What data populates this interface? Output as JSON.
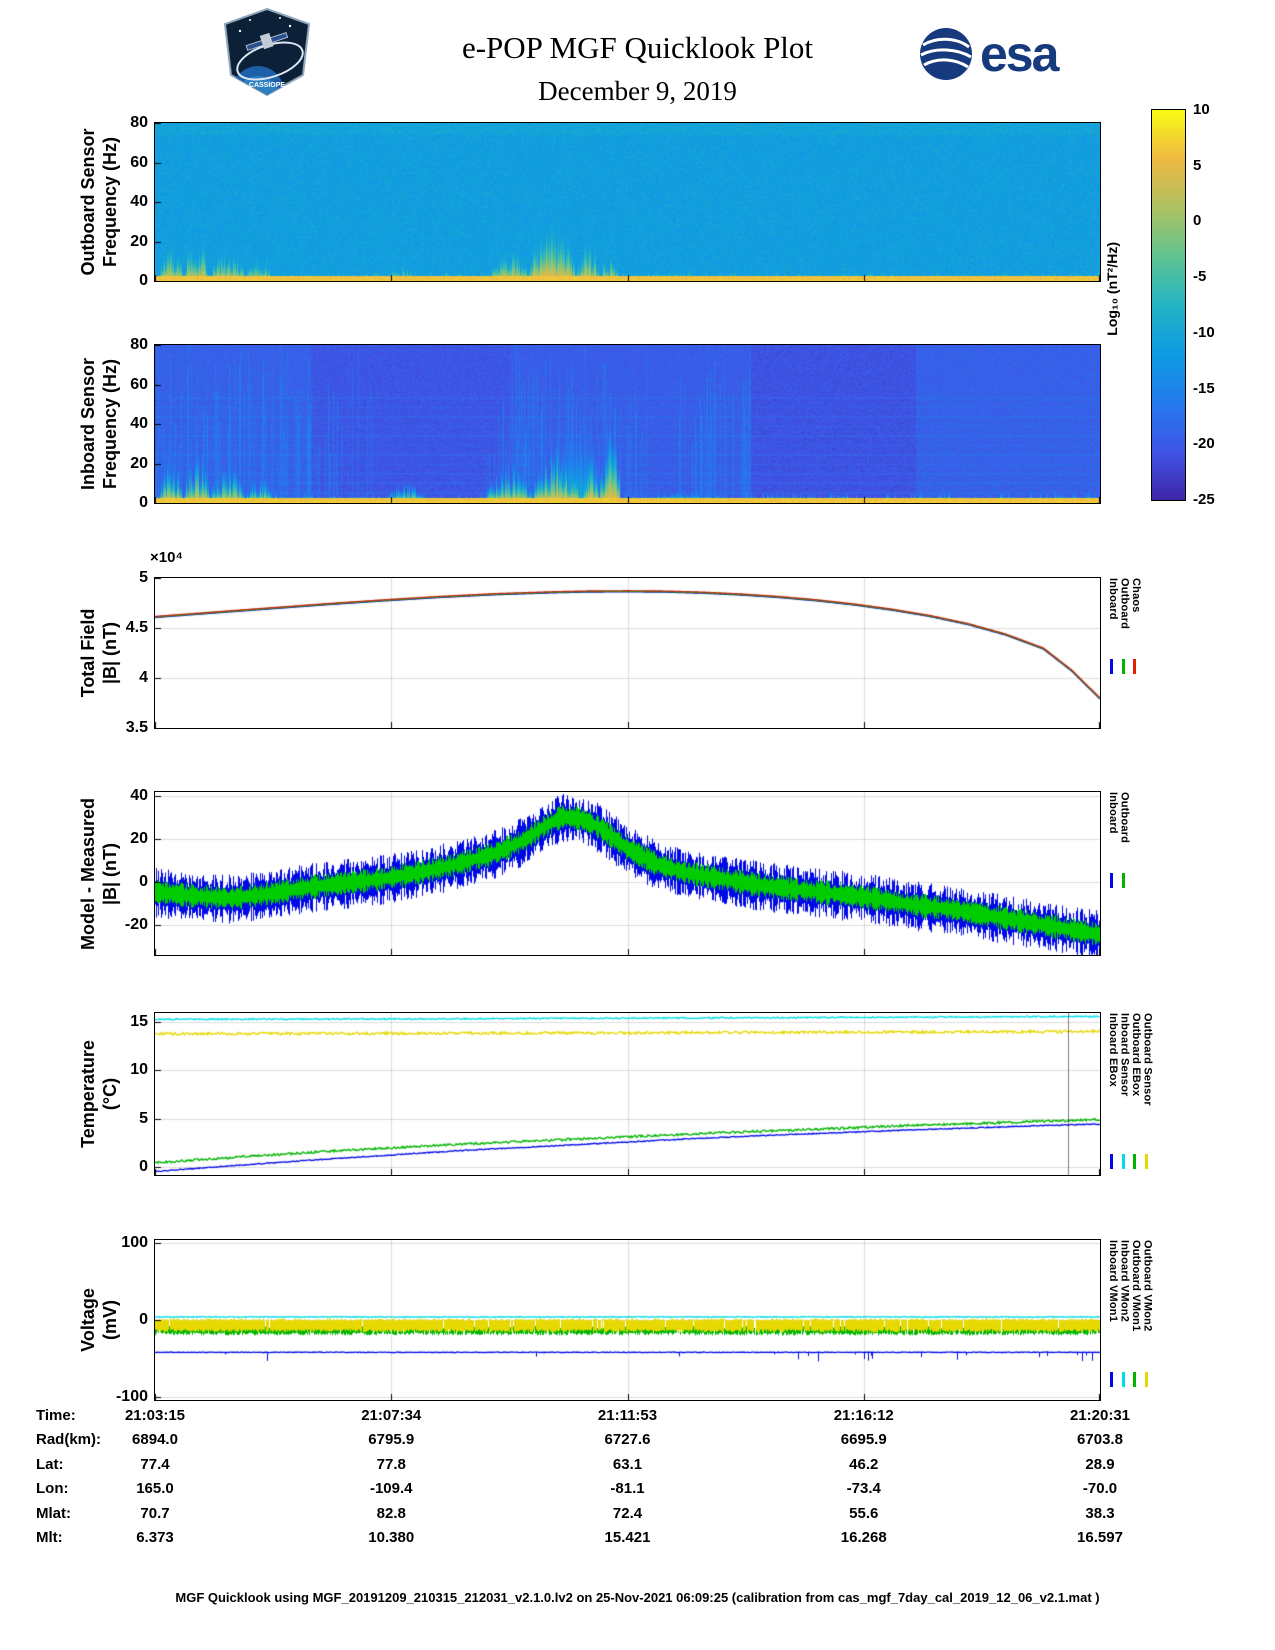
{
  "header": {
    "title": "e-POP MGF Quicklook Plot",
    "date": "December 9, 2019",
    "esa_wordmark": "esa",
    "mission_patch_text": "CASSIOPE"
  },
  "colorbar": {
    "label": "Log₁₀ (nT²/Hz)",
    "max": 10,
    "min": -25,
    "ticks": [
      10,
      5,
      0,
      -5,
      -10,
      -15,
      -20,
      -25
    ],
    "colormap": "parula"
  },
  "time_axis": {
    "tick_labels": [
      "21:03:15",
      "21:07:34",
      "21:11:53",
      "21:16:12",
      "21:20:31"
    ]
  },
  "ephemeris": {
    "rows": [
      {
        "label": "Time:",
        "values": [
          "21:03:15",
          "21:07:34",
          "21:11:53",
          "21:16:12",
          "21:20:31"
        ]
      },
      {
        "label": "Rad(km):",
        "values": [
          "6894.0",
          "6795.9",
          "6727.6",
          "6695.9",
          "6703.8"
        ]
      },
      {
        "label": "Lat:",
        "values": [
          "77.4",
          "77.8",
          "63.1",
          "46.2",
          "28.9"
        ]
      },
      {
        "label": "Lon:",
        "values": [
          "165.0",
          "-109.4",
          "-81.1",
          "-73.4",
          "-70.0"
        ]
      },
      {
        "label": "Mlat:",
        "values": [
          "70.7",
          "82.8",
          "72.4",
          "55.6",
          "38.3"
        ]
      },
      {
        "label": "Mlt:",
        "values": [
          "6.373",
          "10.380",
          "15.421",
          "16.268",
          "16.597"
        ]
      }
    ]
  },
  "footer": "MGF Quicklook using MGF_20191209_210315_212031_v2.1.0.lv2 on 25-Nov-2021 06:09:25 (calibration from cas_mgf_7day_cal_2019_12_06_v2.1.mat )",
  "chart_data": [
    {
      "type": "heatmap",
      "render": "spectrogram",
      "name": "outboard-spectrogram",
      "seed": 7,
      "ylabel_lines": [
        "Outboard Sensor",
        "Frequency (Hz)"
      ],
      "ylim": [
        0,
        80
      ],
      "yticks": [
        0,
        20,
        40,
        60,
        80
      ],
      "ytick_labels": [
        "0",
        "20",
        "40",
        "60",
        "80"
      ],
      "value_units": "Log10 (nT²/Hz)",
      "value_range": [
        -25,
        10
      ],
      "background_level": -11.3,
      "noise": 3.2,
      "top_brighten": {
        "fmin": 74,
        "amount": 0.9
      },
      "bottom_band": {
        "fmax": 2.4,
        "level": 6.2
      },
      "base_fringe": {
        "fmax": 5,
        "level": 4.5
      },
      "bursts": [
        {
          "x0": 0.004,
          "x1": 0.03,
          "fmax": 20,
          "level": 6
        },
        {
          "x0": 0.03,
          "x1": 0.058,
          "fmax": 24,
          "level": 6
        },
        {
          "x0": 0.058,
          "x1": 0.095,
          "fmax": 18,
          "level": 6
        },
        {
          "x0": 0.095,
          "x1": 0.125,
          "fmax": 12,
          "level": 5
        },
        {
          "x0": 0.245,
          "x1": 0.275,
          "fmax": 9,
          "level": 5
        },
        {
          "x0": 0.355,
          "x1": 0.395,
          "fmax": 18,
          "level": 6
        },
        {
          "x0": 0.395,
          "x1": 0.445,
          "fmax": 30,
          "level": 7
        },
        {
          "x0": 0.445,
          "x1": 0.47,
          "fmax": 22,
          "level": 6
        },
        {
          "x0": 0.47,
          "x1": 0.49,
          "fmax": 14,
          "level": 6
        },
        {
          "x0": 0.52,
          "x1": 0.535,
          "fmax": 5,
          "level": 4
        },
        {
          "x0": 0.56,
          "x1": 0.575,
          "fmax": 4,
          "level": 4
        }
      ]
    },
    {
      "type": "heatmap",
      "render": "spectrogram",
      "name": "inboard-spectrogram",
      "seed": 29,
      "ylabel_lines": [
        "Inboard Sensor",
        "Frequency (Hz)"
      ],
      "ylim": [
        0,
        80
      ],
      "yticks": [
        0,
        20,
        40,
        60,
        80
      ],
      "ytick_labels": [
        "0",
        "20",
        "40",
        "60",
        "80"
      ],
      "value_units": "Log10 (nT²/Hz)",
      "value_range": [
        -25,
        10
      ],
      "background_level": -20,
      "noise": 2.6,
      "stripes": {
        "period": 4.8,
        "width": 0.8,
        "amount": 1.1,
        "fmax": 55
      },
      "blocks": [
        [
          0,
          0.165,
          -19.2
        ],
        [
          0.165,
          0.375,
          -20.4
        ],
        [
          0.375,
          0.63,
          -19.6
        ],
        [
          0.63,
          0.805,
          -20.7
        ],
        [
          0.805,
          1.01,
          -19.2
        ]
      ],
      "light_columns": {
        "ranges": [
          [
            0,
            0.23
          ],
          [
            0.33,
            0.52
          ],
          [
            0.55,
            0.63
          ]
        ],
        "prob": 0.35,
        "amount": 2.2
      },
      "bottom_band": {
        "fmax": 2.4,
        "level": 6.5
      },
      "base_fringe": {
        "fmax": 6,
        "level": 5
      },
      "bursts": [
        {
          "x0": 0.004,
          "x1": 0.03,
          "fmax": 26,
          "level": 7
        },
        {
          "x0": 0.03,
          "x1": 0.058,
          "fmax": 30,
          "level": 7
        },
        {
          "x0": 0.058,
          "x1": 0.095,
          "fmax": 22,
          "level": 6
        },
        {
          "x0": 0.095,
          "x1": 0.125,
          "fmax": 14,
          "level": 6
        },
        {
          "x0": 0.155,
          "x1": 0.168,
          "fmax": 8,
          "level": 5
        },
        {
          "x0": 0.245,
          "x1": 0.285,
          "fmax": 12,
          "level": 6
        },
        {
          "x0": 0.35,
          "x1": 0.4,
          "fmax": 25,
          "level": 6
        },
        {
          "x0": 0.4,
          "x1": 0.45,
          "fmax": 38,
          "level": 7
        },
        {
          "x0": 0.42,
          "x1": 0.47,
          "fmax": 62,
          "level": -8
        },
        {
          "x0": 0.45,
          "x1": 0.47,
          "fmax": 30,
          "level": 7
        },
        {
          "x0": 0.47,
          "x1": 0.492,
          "fmax": 50,
          "level": 7
        },
        {
          "x0": 0.52,
          "x1": 0.6,
          "fmax": 6,
          "level": 5
        }
      ]
    },
    {
      "type": "line",
      "render": "triline",
      "name": "total-field",
      "ylabel_lines": [
        "Total Field",
        "|B| (nT)"
      ],
      "exponent_label": "×10⁴",
      "unit_note": "values in 10⁴ nT",
      "ylim": [
        3.5,
        5
      ],
      "yticks": [
        3.5,
        4,
        4.5,
        5
      ],
      "ytick_labels": [
        "3.5",
        "4",
        "4.5",
        "5"
      ],
      "legend": {
        "labels": [
          "Inboard",
          "Outboard",
          "Chaos"
        ],
        "colors": [
          "#0008e8",
          "#00b400",
          "#e02000"
        ]
      },
      "points": [
        [
          0,
          4.615
        ],
        [
          0.06,
          4.658
        ],
        [
          0.12,
          4.7
        ],
        [
          0.18,
          4.742
        ],
        [
          0.24,
          4.78
        ],
        [
          0.3,
          4.815
        ],
        [
          0.36,
          4.843
        ],
        [
          0.42,
          4.862
        ],
        [
          0.46,
          4.87
        ],
        [
          0.5,
          4.872
        ],
        [
          0.54,
          4.869
        ],
        [
          0.58,
          4.858
        ],
        [
          0.62,
          4.84
        ],
        [
          0.66,
          4.815
        ],
        [
          0.7,
          4.782
        ],
        [
          0.74,
          4.74
        ],
        [
          0.78,
          4.688
        ],
        [
          0.82,
          4.625
        ],
        [
          0.86,
          4.545
        ],
        [
          0.9,
          4.44
        ],
        [
          0.94,
          4.3
        ],
        [
          0.97,
          4.08
        ],
        [
          1,
          3.8
        ]
      ],
      "series": [
        {
          "name": "Inboard",
          "color": "#0008e8",
          "offset": -0.01
        },
        {
          "name": "Outboard",
          "color": "#00b400",
          "offset": -0.005
        },
        {
          "name": "Chaos",
          "color": "#c02810",
          "offset": 0
        }
      ]
    },
    {
      "type": "line",
      "render": "band",
      "name": "model-minus-measured",
      "ylabel_lines": [
        "Model - Measured",
        "|B| (nT)"
      ],
      "ylim": [
        -34,
        42
      ],
      "yticks": [
        -20,
        0,
        20,
        40
      ],
      "ytick_labels": [
        "-20",
        "0",
        "20",
        "40"
      ],
      "legend": {
        "labels": [
          "Inboard",
          "Outboard"
        ],
        "colors": [
          "#0008e8",
          "#00b400"
        ]
      },
      "center_points": [
        [
          0,
          -5
        ],
        [
          0.04,
          -7
        ],
        [
          0.08,
          -8
        ],
        [
          0.12,
          -6
        ],
        [
          0.16,
          -3
        ],
        [
          0.2,
          -1
        ],
        [
          0.24,
          1
        ],
        [
          0.28,
          4
        ],
        [
          0.32,
          8
        ],
        [
          0.36,
          13
        ],
        [
          0.39,
          19
        ],
        [
          0.41,
          25
        ],
        [
          0.43,
          30
        ],
        [
          0.45,
          29
        ],
        [
          0.47,
          25
        ],
        [
          0.5,
          15
        ],
        [
          0.53,
          8
        ],
        [
          0.56,
          4
        ],
        [
          0.6,
          1
        ],
        [
          0.64,
          -2
        ],
        [
          0.68,
          -4
        ],
        [
          0.72,
          -6
        ],
        [
          0.76,
          -8
        ],
        [
          0.8,
          -11
        ],
        [
          0.84,
          -13
        ],
        [
          0.88,
          -16
        ],
        [
          0.92,
          -19
        ],
        [
          0.96,
          -22
        ],
        [
          1,
          -25
        ]
      ],
      "bands": [
        {
          "name": "Inboard",
          "color": "#0008e8",
          "amp": 8,
          "offset": 0
        },
        {
          "name": "Outboard",
          "color": "#00cc00",
          "amp": 4,
          "offset": 0.5
        }
      ]
    },
    {
      "type": "line",
      "render": "lines",
      "name": "temperature",
      "ylabel_lines": [
        "Temperature",
        "(°C)"
      ],
      "ylim": [
        -0.8,
        15.9
      ],
      "yticks": [
        0,
        5,
        10,
        15
      ],
      "ytick_labels": [
        "0",
        "5",
        "10",
        "15"
      ],
      "legend": {
        "labels": [
          "Inboard EBox",
          "Inboard Sensor",
          "Outboard EBox",
          "Outboard Sensor"
        ],
        "colors": [
          "#0008e8",
          "#00dce8",
          "#00b400",
          "#e6d800"
        ]
      },
      "artifact_x": 0.966,
      "series": [
        {
          "name": "Inboard EBox",
          "color": "#0008e8",
          "noise": 0.05,
          "points": [
            [
              0,
              -0.45
            ],
            [
              0.08,
              0.15
            ],
            [
              0.16,
              0.7
            ],
            [
              0.24,
              1.2
            ],
            [
              0.32,
              1.7
            ],
            [
              0.4,
              2.1
            ],
            [
              0.48,
              2.5
            ],
            [
              0.56,
              2.9
            ],
            [
              0.64,
              3.25
            ],
            [
              0.72,
              3.55
            ],
            [
              0.8,
              3.85
            ],
            [
              0.88,
              4.1
            ],
            [
              0.94,
              4.3
            ],
            [
              1,
              4.45
            ]
          ]
        },
        {
          "name": "Inboard Sensor",
          "color": "#00dce8",
          "noise": 0.07,
          "points": [
            [
              0,
              15.25
            ],
            [
              0.3,
              15.3
            ],
            [
              0.6,
              15.4
            ],
            [
              1,
              15.55
            ]
          ]
        },
        {
          "name": "Outboard EBox",
          "color": "#00b400",
          "noise": 0.12,
          "points": [
            [
              0,
              0.45
            ],
            [
              0.08,
              1
            ],
            [
              0.16,
              1.5
            ],
            [
              0.24,
              1.95
            ],
            [
              0.32,
              2.35
            ],
            [
              0.4,
              2.7
            ],
            [
              0.48,
              3.05
            ],
            [
              0.56,
              3.4
            ],
            [
              0.64,
              3.7
            ],
            [
              0.72,
              4
            ],
            [
              0.8,
              4.3
            ],
            [
              0.88,
              4.55
            ],
            [
              0.94,
              4.75
            ],
            [
              1,
              4.9
            ]
          ]
        },
        {
          "name": "Outboard Sensor",
          "color": "#e6d800",
          "noise": 0.14,
          "points": [
            [
              0,
              13.75
            ],
            [
              0.5,
              13.85
            ],
            [
              1,
              14
            ]
          ]
        }
      ]
    },
    {
      "type": "line",
      "render": "voltage",
      "name": "voltage",
      "ylabel_lines": [
        "Voltage",
        "(mV)"
      ],
      "ylim": [
        -104,
        104
      ],
      "yticks": [
        -100,
        0,
        100
      ],
      "ytick_labels": [
        "-100",
        "0",
        "100"
      ],
      "legend": {
        "labels": [
          "Inboard VMon1",
          "Inboard VMon2",
          "Outboard VMon1",
          "Outboard VMon2"
        ],
        "colors": [
          "#0008e8",
          "#00dce8",
          "#00b400",
          "#e6d800"
        ]
      },
      "series": [
        {
          "name": "Outboard VMon1",
          "color": "#00b400",
          "style": "band",
          "lo": -16,
          "hi": -8,
          "gap_prob": 0.05
        },
        {
          "name": "Outboard VMon2",
          "color": "#e6d800",
          "style": "band",
          "lo": -12,
          "hi": 2,
          "gap_prob": 0.04
        },
        {
          "name": "Inboard VMon2",
          "color": "#00dce8",
          "style": "flat",
          "base": 4,
          "noise": 0.5
        },
        {
          "name": "Inboard VMon1",
          "color": "#0008e8",
          "style": "baseline_spikes",
          "base": -42,
          "noise": 0.4,
          "spike_depth": 11,
          "spike_prob_left": 0.012,
          "spike_prob_right": 0.07
        }
      ]
    }
  ]
}
